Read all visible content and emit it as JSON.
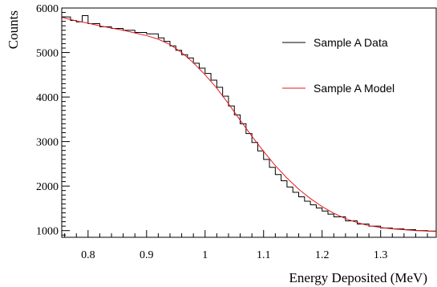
{
  "chart_data": {
    "type": "line",
    "xlabel": "Energy Deposited (MeV)",
    "ylabel": "Counts",
    "xlim": [
      0.755,
      1.395
    ],
    "ylim": [
      850,
      6000
    ],
    "x_ticks": [
      0.8,
      0.9,
      1.0,
      1.1,
      1.2,
      1.3
    ],
    "x_tick_labels": [
      "0.8",
      "0.9",
      "1",
      "1.1",
      "1.2",
      "1.3"
    ],
    "y_ticks": [
      1000,
      2000,
      3000,
      4000,
      5000,
      6000
    ],
    "y_tick_labels": [
      "1000",
      "2000",
      "3000",
      "4000",
      "5000",
      "6000"
    ],
    "grid": false,
    "legend_position": "top-right",
    "series": [
      {
        "name": "Sample A Data",
        "style": "step",
        "color": "#000000",
        "x": [
          0.755,
          0.77,
          0.78,
          0.79,
          0.8,
          0.82,
          0.84,
          0.86,
          0.88,
          0.9,
          0.92,
          0.93,
          0.94,
          0.95,
          0.96,
          0.97,
          0.98,
          0.99,
          1.0,
          1.01,
          1.02,
          1.03,
          1.04,
          1.05,
          1.06,
          1.07,
          1.08,
          1.09,
          1.1,
          1.11,
          1.12,
          1.13,
          1.14,
          1.15,
          1.16,
          1.17,
          1.18,
          1.19,
          1.2,
          1.21,
          1.22,
          1.24,
          1.26,
          1.28,
          1.3,
          1.32,
          1.34,
          1.36,
          1.38,
          1.395
        ],
        "y": [
          5800,
          5720,
          5690,
          5830,
          5650,
          5580,
          5540,
          5500,
          5450,
          5420,
          5330,
          5250,
          5150,
          5050,
          4950,
          4880,
          4760,
          4650,
          4530,
          4380,
          4220,
          4020,
          3800,
          3600,
          3400,
          3180,
          2980,
          2790,
          2600,
          2420,
          2260,
          2120,
          1980,
          1860,
          1760,
          1660,
          1580,
          1510,
          1440,
          1370,
          1310,
          1220,
          1150,
          1100,
          1060,
          1040,
          1020,
          1000,
          990,
          980
        ]
      },
      {
        "name": "Sample A Model",
        "style": "smooth",
        "color": "#e41a1c",
        "x": [
          0.755,
          0.78,
          0.8,
          0.82,
          0.84,
          0.86,
          0.88,
          0.9,
          0.92,
          0.94,
          0.96,
          0.98,
          1.0,
          1.02,
          1.04,
          1.06,
          1.08,
          1.1,
          1.12,
          1.14,
          1.16,
          1.18,
          1.2,
          1.22,
          1.24,
          1.26,
          1.28,
          1.3,
          1.32,
          1.34,
          1.36,
          1.38,
          1.395
        ],
        "y": [
          5790,
          5710,
          5660,
          5600,
          5550,
          5500,
          5440,
          5380,
          5300,
          5180,
          5000,
          4770,
          4500,
          4200,
          3850,
          3480,
          3120,
          2780,
          2460,
          2180,
          1930,
          1720,
          1540,
          1390,
          1270,
          1180,
          1110,
          1070,
          1040,
          1020,
          1000,
          990,
          980
        ]
      }
    ]
  }
}
